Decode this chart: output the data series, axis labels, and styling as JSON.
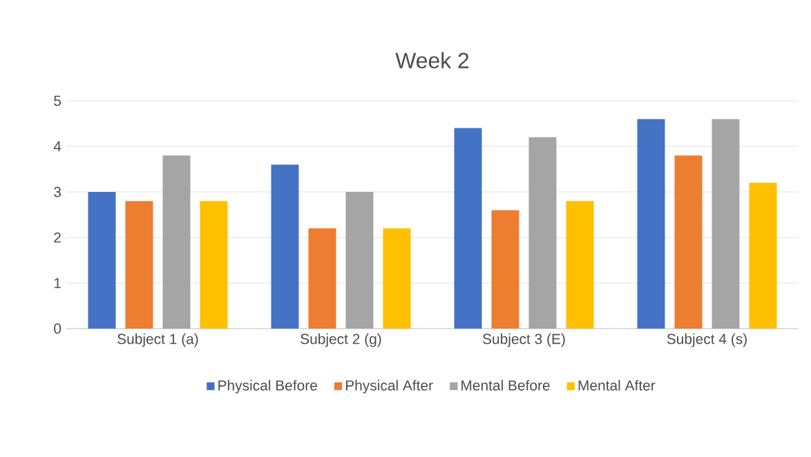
{
  "chart_data": {
    "type": "bar",
    "title": "Week 2",
    "categories": [
      "Subject 1 (a)",
      "Subject 2 (g)",
      "Subject 3 (E)",
      "Subject 4 (s)"
    ],
    "series": [
      {
        "name": "Physical Before",
        "color": "#4472c4",
        "values": [
          3.0,
          3.6,
          4.4,
          4.6
        ]
      },
      {
        "name": "Physical After",
        "color": "#ed7d31",
        "values": [
          2.8,
          2.2,
          2.6,
          3.8
        ]
      },
      {
        "name": "Mental Before",
        "color": "#a5a5a5",
        "values": [
          3.8,
          3.0,
          4.2,
          4.6
        ]
      },
      {
        "name": "Mental After",
        "color": "#ffc000",
        "values": [
          2.8,
          2.2,
          2.8,
          3.2
        ]
      }
    ],
    "ylim": [
      0,
      5
    ],
    "yticks": [
      0,
      1,
      2,
      3,
      4,
      5
    ],
    "grid": "y",
    "legend": "bottom"
  }
}
